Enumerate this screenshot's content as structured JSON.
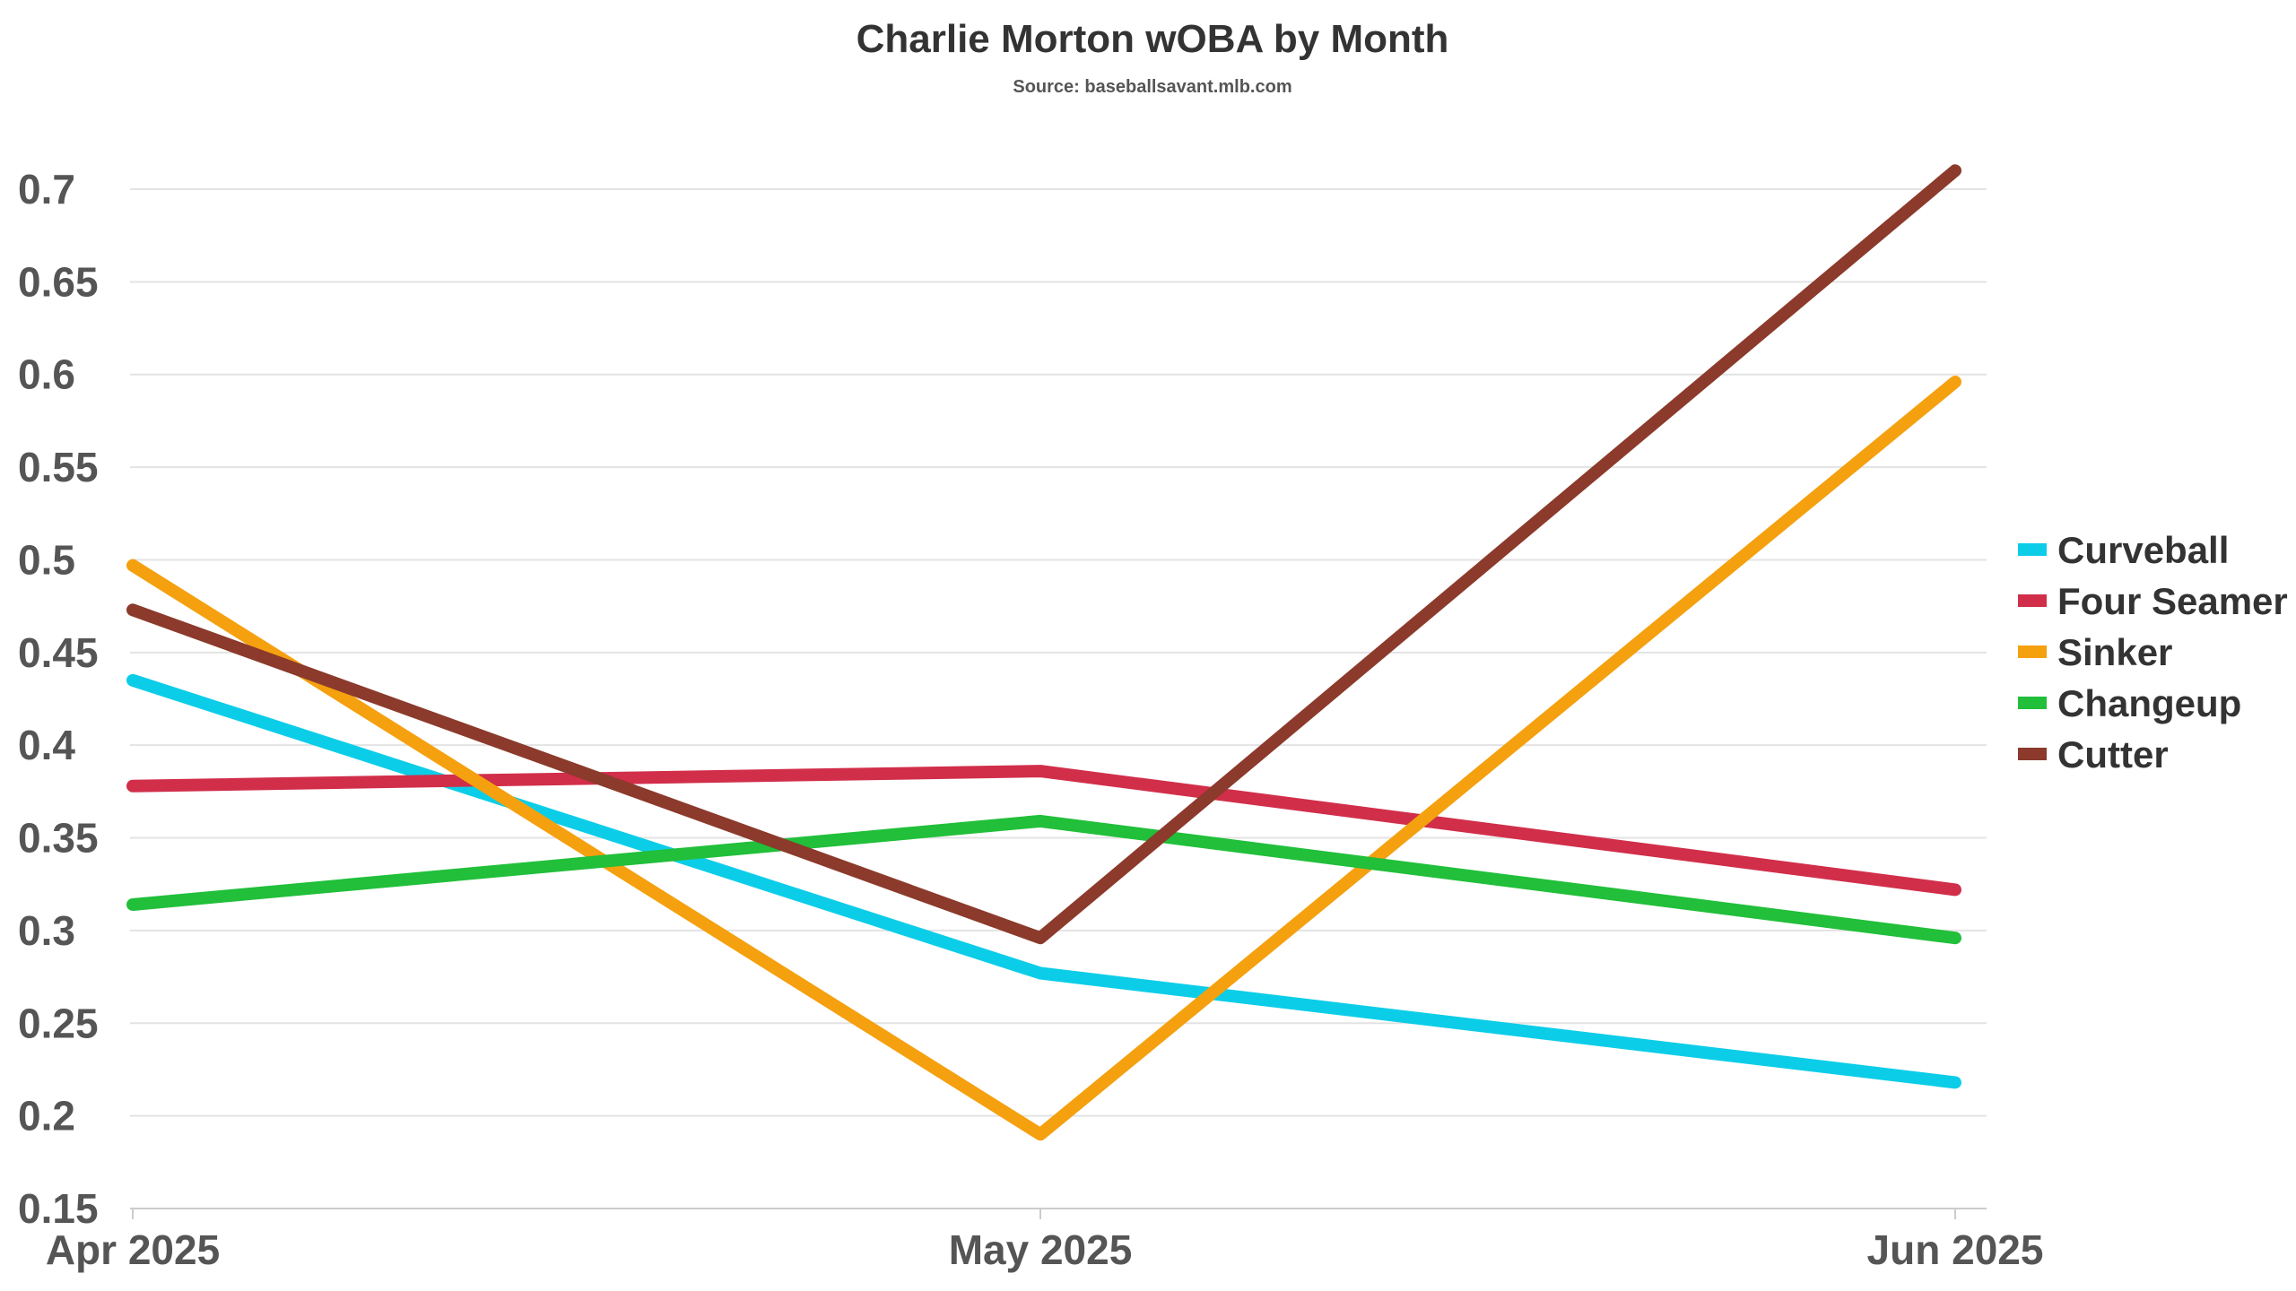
{
  "chart_data": {
    "type": "line",
    "title": "Charlie Morton wOBA by Month",
    "subtitle": "Source: baseballsavant.mlb.com",
    "xlabel": "",
    "ylabel": "",
    "categories": [
      "Apr 2025",
      "May 2025",
      "Jun 2025"
    ],
    "ylim": [
      0.15,
      0.7
    ],
    "yticks": [
      0.15,
      0.2,
      0.25,
      0.3,
      0.35,
      0.4,
      0.45,
      0.5,
      0.55,
      0.6,
      0.65,
      0.7
    ],
    "ytick_labels": [
      "0.15",
      "0.2",
      "0.25",
      "0.3",
      "0.35",
      "0.4",
      "0.45",
      "0.5",
      "0.55",
      "0.6",
      "0.65",
      "0.7"
    ],
    "grid": true,
    "legend_position": "right",
    "series": [
      {
        "name": "Curveball",
        "color": "#0ccde8",
        "values": [
          0.435,
          0.277,
          0.218
        ]
      },
      {
        "name": "Four Seamer",
        "color": "#d12e4a",
        "values": [
          0.378,
          0.386,
          0.322
        ]
      },
      {
        "name": "Sinker",
        "color": "#f5a00f",
        "values": [
          0.497,
          0.19,
          0.596
        ]
      },
      {
        "name": "Changeup",
        "color": "#21bf3a",
        "values": [
          0.314,
          0.359,
          0.296
        ]
      },
      {
        "name": "Cutter",
        "color": "#8b3a2b",
        "values": [
          0.473,
          0.296,
          0.71
        ]
      }
    ]
  }
}
